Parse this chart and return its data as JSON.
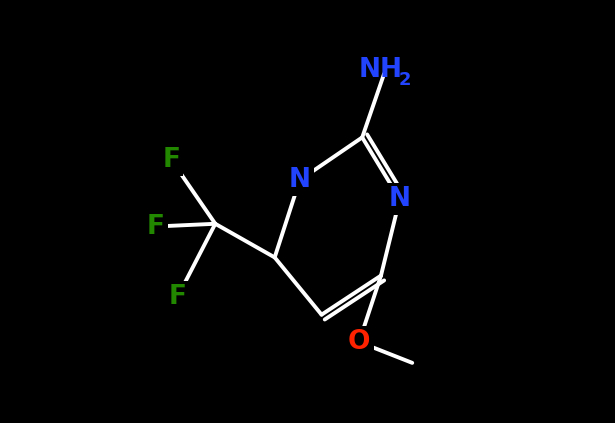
{
  "background_color": "#000000",
  "figure_size": [
    6.15,
    4.23
  ],
  "dpi": 100,
  "line_color": "#ffffff",
  "line_width": 2.8,
  "n_color": "#2244ff",
  "f_color": "#228800",
  "o_color": "#ff2200",
  "nh2_color": "#2244ff",
  "c_color": "#ffffff",
  "fontsize_main": 19,
  "fontsize_sub": 13,
  "xlim": [
    -0.05,
    1.05
  ],
  "ylim": [
    -0.05,
    1.05
  ]
}
